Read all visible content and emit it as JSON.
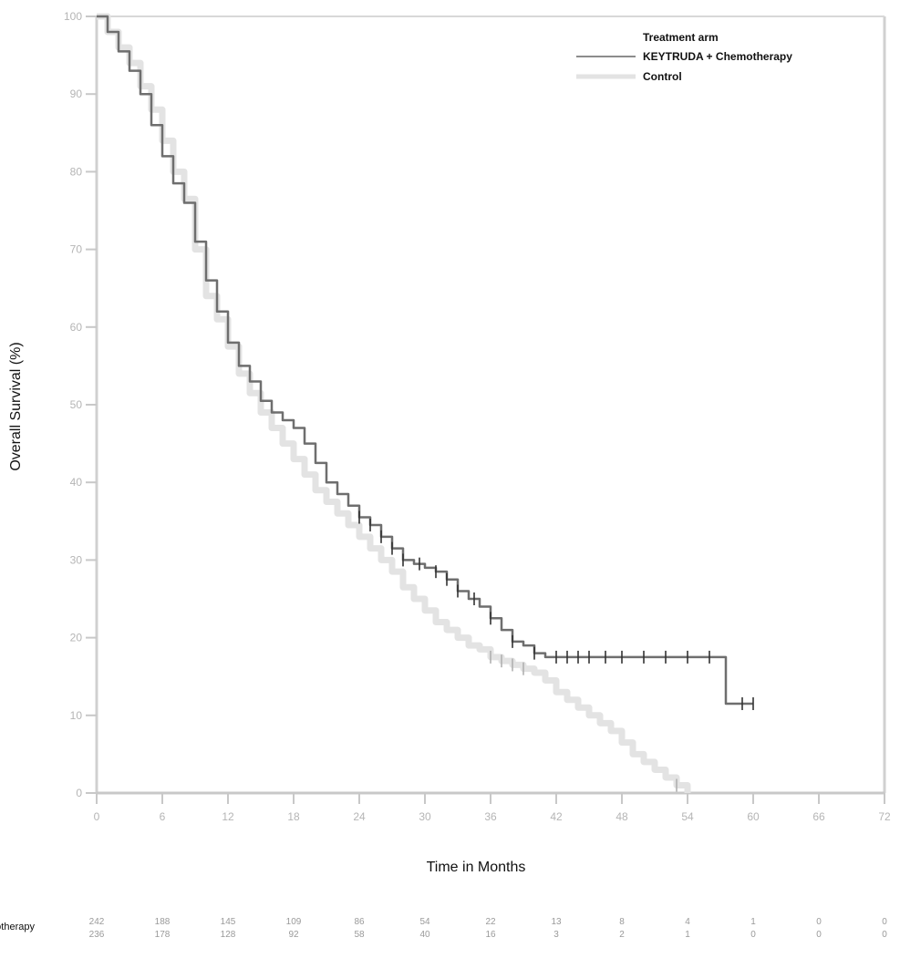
{
  "chart_data": {
    "type": "line",
    "title": "",
    "xlabel": "Time in Months",
    "ylabel": "Overall Survival (%)",
    "xlim": [
      0,
      72
    ],
    "ylim": [
      0,
      100
    ],
    "x_ticks": [
      "0",
      "6",
      "12",
      "18",
      "24",
      "30",
      "36",
      "42",
      "48",
      "54",
      "60",
      "66",
      "72"
    ],
    "y_ticks": [
      "0",
      "10",
      "20",
      "30",
      "40",
      "50",
      "60",
      "70",
      "80",
      "90",
      "100"
    ],
    "legend": {
      "title": "Treatment arm",
      "position": "top-right",
      "entries": [
        "KEYTRUDA + Chemotherapy",
        "Control"
      ]
    },
    "series": [
      {
        "name": "KEYTRUDA + Chemotherapy",
        "color": "#6e6e6e",
        "x": [
          0,
          1,
          2,
          3,
          4,
          5,
          6,
          7,
          8,
          9,
          10,
          11,
          12,
          13,
          14,
          15,
          16,
          17,
          18,
          19,
          20,
          21,
          22,
          23,
          24,
          25,
          26,
          27,
          28,
          29,
          30,
          31,
          32,
          33,
          34,
          35,
          36,
          37,
          38,
          39,
          40,
          41,
          42,
          43,
          44,
          45,
          46,
          47,
          48,
          50,
          52,
          54,
          56,
          57.5,
          57.5,
          59,
          60
        ],
        "y": [
          100,
          98,
          95.5,
          93,
          90,
          86,
          82,
          78.5,
          76,
          71,
          66,
          62,
          58,
          55,
          53,
          50.5,
          49,
          48,
          47,
          45,
          42.5,
          40,
          38.5,
          37,
          35.5,
          34.5,
          33,
          31.5,
          30,
          29.5,
          29,
          28.5,
          27.5,
          26,
          25,
          24,
          22.5,
          21,
          19.5,
          19,
          18,
          17.5,
          17.5,
          17.5,
          17.5,
          17.5,
          17.5,
          17.5,
          17.5,
          17.5,
          17.5,
          17.5,
          17.5,
          17.5,
          11.5,
          11.5,
          11.5
        ],
        "censor_x": [
          24,
          25,
          26,
          27,
          28,
          29.5,
          31,
          32,
          33,
          34.5,
          36,
          38,
          40,
          42,
          43,
          44,
          45,
          46.5,
          48,
          50,
          52,
          54,
          56,
          59,
          60
        ]
      },
      {
        "name": "Control",
        "color": "#e3e3e3",
        "x": [
          0,
          1,
          2,
          3,
          4,
          5,
          6,
          7,
          8,
          9,
          10,
          11,
          12,
          13,
          14,
          15,
          16,
          17,
          18,
          19,
          20,
          21,
          22,
          23,
          24,
          25,
          26,
          27,
          28,
          29,
          30,
          31,
          32,
          33,
          34,
          35,
          36,
          37,
          38,
          39,
          40,
          41,
          42,
          43,
          44,
          45,
          46,
          47,
          48,
          49,
          50,
          51,
          52,
          53,
          54
        ],
        "y": [
          100,
          98,
          96,
          94,
          91,
          88,
          84,
          80,
          76.5,
          70,
          64,
          61,
          57.5,
          54,
          51.5,
          49,
          47,
          45,
          43,
          41,
          39,
          37.5,
          36,
          34.5,
          33,
          31.5,
          30,
          28.5,
          26.5,
          25,
          23.5,
          22,
          21,
          20,
          19,
          18.5,
          17.5,
          17,
          16.5,
          16,
          15.5,
          14.5,
          13,
          12,
          11,
          10,
          9,
          8,
          6.5,
          5,
          4,
          3,
          2,
          1,
          0
        ],
        "censor_x": [
          36,
          37,
          38,
          39,
          53
        ]
      }
    ],
    "risk_table": {
      "rows": [
        {
          "label": "KEYTRUDA + Chemotherapy",
          "values": [
            "242",
            "188",
            "145",
            "109",
            "86",
            "54",
            "22",
            "13",
            "8",
            "4",
            "1",
            "0",
            "0"
          ]
        },
        {
          "label": "",
          "values": [
            "236",
            "178",
            "128",
            "92",
            "58",
            "40",
            "16",
            "3",
            "2",
            "1",
            "0",
            "0",
            "0"
          ]
        }
      ]
    }
  }
}
